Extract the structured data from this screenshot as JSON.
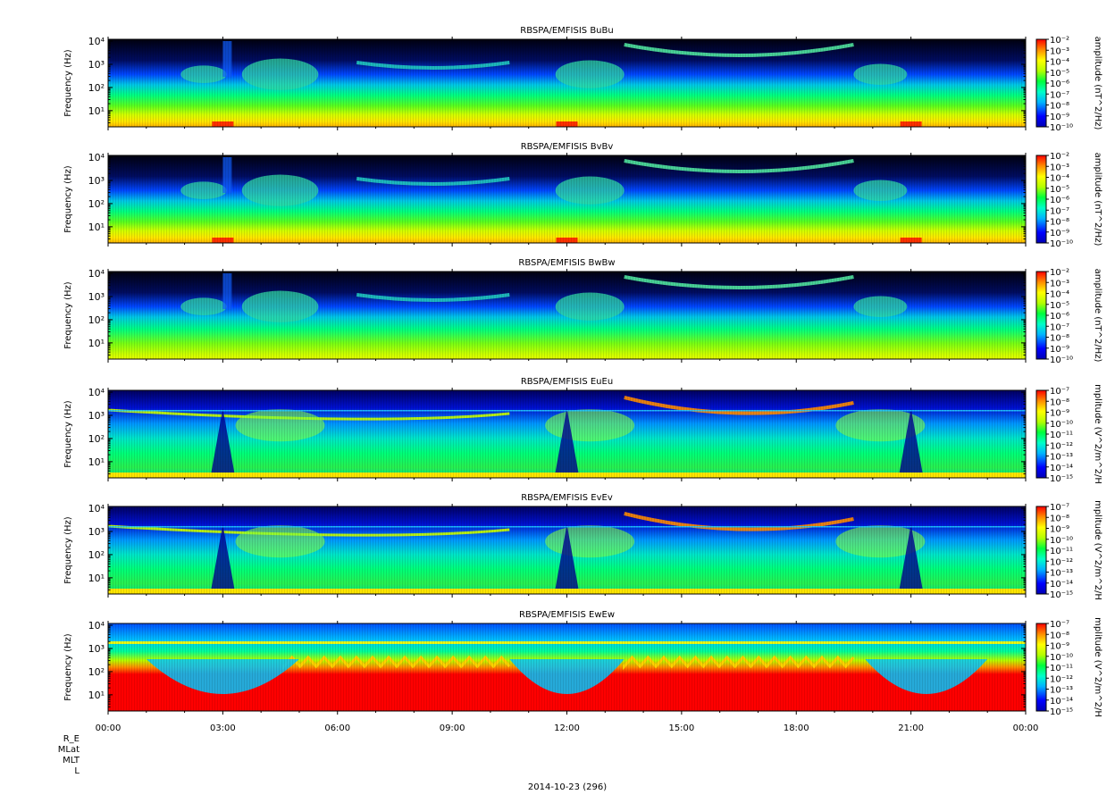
{
  "chart_data": {
    "type": "heatmap",
    "xaxis": {
      "tick_labels": [
        "00:00",
        "03:00",
        "06:00",
        "09:00",
        "12:00",
        "15:00",
        "18:00",
        "21:00",
        "00:00"
      ],
      "range_hours": [
        0,
        24
      ]
    },
    "ephemeris_labels": [
      "R_E",
      "MLat",
      "MLT",
      "L"
    ],
    "date_label": "2014-10-23 (296)",
    "panels": [
      {
        "title": "RBSPA/EMFISIS  BuBu",
        "ylabel": "Frequency (Hz)",
        "yscale": "log",
        "ylim": [
          2,
          12000
        ],
        "ytick_exponents": [
          1,
          2,
          3,
          4
        ],
        "colorbar_label": "amplitude (nT^2/Hz)",
        "colorbar_exponents": [
          -2,
          -3,
          -4,
          -5,
          -6,
          -7,
          -8,
          -9,
          -10
        ],
        "style": "B"
      },
      {
        "title": "RBSPA/EMFISIS  BvBv",
        "ylabel": "Frequency (Hz)",
        "yscale": "log",
        "ylim": [
          2,
          12000
        ],
        "ytick_exponents": [
          1,
          2,
          3,
          4
        ],
        "colorbar_label": "amplitude (nT^2/Hz)",
        "colorbar_exponents": [
          -2,
          -3,
          -4,
          -5,
          -6,
          -7,
          -8,
          -9,
          -10
        ],
        "style": "B"
      },
      {
        "title": "RBSPA/EMFISIS  BwBw",
        "ylabel": "Frequency (Hz)",
        "yscale": "log",
        "ylim": [
          2,
          12000
        ],
        "ytick_exponents": [
          1,
          2,
          3,
          4
        ],
        "colorbar_label": "amplitude (nT^2/Hz)",
        "colorbar_exponents": [
          -2,
          -3,
          -4,
          -5,
          -6,
          -7,
          -8,
          -9,
          -10
        ],
        "style": "Bw"
      },
      {
        "title": "RBSPA/EMFISIS  EuEu",
        "ylabel": "Frequency (Hz)",
        "yscale": "log",
        "ylim": [
          2,
          12000
        ],
        "ytick_exponents": [
          1,
          2,
          3,
          4
        ],
        "colorbar_label": "mplitude (V^2/m^2/H",
        "colorbar_exponents": [
          -7,
          -8,
          -9,
          -10,
          -11,
          -12,
          -13,
          -14,
          -15
        ],
        "style": "E"
      },
      {
        "title": "RBSPA/EMFISIS  EvEv",
        "ylabel": "Frequency (Hz)",
        "yscale": "log",
        "ylim": [
          2,
          12000
        ],
        "ytick_exponents": [
          1,
          2,
          3,
          4
        ],
        "colorbar_label": "mplitude (V^2/m^2/H",
        "colorbar_exponents": [
          -7,
          -8,
          -9,
          -10,
          -11,
          -12,
          -13,
          -14,
          -15
        ],
        "style": "E"
      },
      {
        "title": "RBSPA/EMFISIS  EwEw",
        "ylabel": "Frequency (Hz)",
        "yscale": "log",
        "ylim": [
          2,
          12000
        ],
        "ytick_exponents": [
          1,
          2,
          3,
          4
        ],
        "colorbar_label": "mplitude (V^2/m^2/H",
        "colorbar_exponents": [
          -7,
          -8,
          -9,
          -10,
          -11,
          -12,
          -13,
          -14,
          -15
        ],
        "style": "Ew"
      }
    ]
  }
}
